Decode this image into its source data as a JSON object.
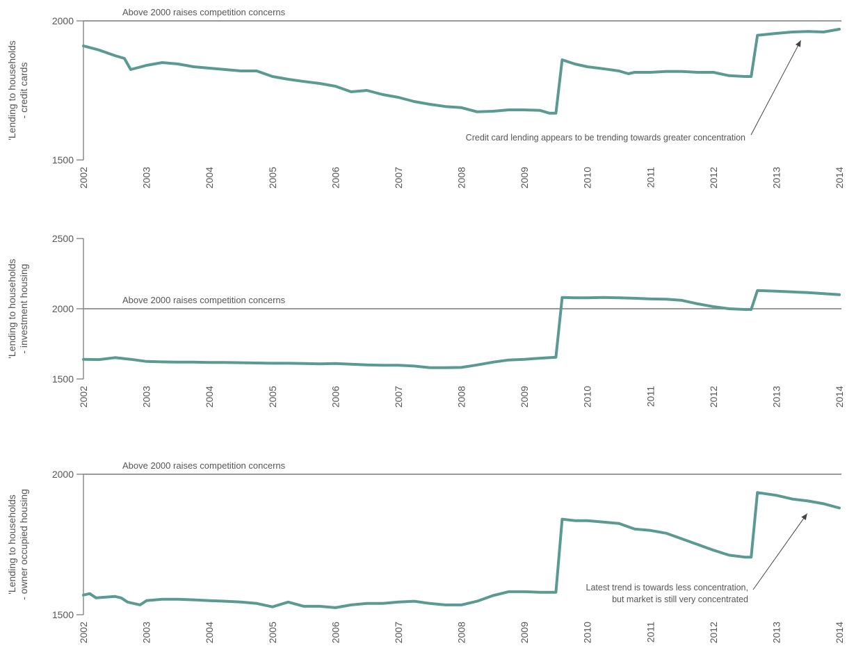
{
  "chart_data": [
    {
      "type": "line",
      "ylabel": [
        "'Lending to households",
        "- credit cards"
      ],
      "ylim": [
        1500,
        2000
      ],
      "yticks": [
        1500,
        2000
      ],
      "xticks": [
        "2002",
        "2003",
        "2004",
        "2005",
        "2006",
        "2007",
        "2008",
        "2009",
        "2010",
        "2011",
        "2012",
        "2013",
        "2014"
      ],
      "xrange": [
        2002,
        2014
      ],
      "reference": {
        "value": 2000,
        "label": "Above 2000 raises competition concerns"
      },
      "annotation": {
        "text": [
          "Credit card lending appears to be trending towards greater concentration"
        ],
        "points_to": {
          "x": 2013.4,
          "y": 1960
        }
      },
      "series": [
        {
          "color": "#5b9a91",
          "x": [
            2002.0,
            2002.25,
            2002.5,
            2002.65,
            2002.75,
            2003.0,
            2003.25,
            2003.5,
            2003.75,
            2004.0,
            2004.25,
            2004.5,
            2004.75,
            2005.0,
            2005.25,
            2005.5,
            2005.75,
            2006.0,
            2006.25,
            2006.5,
            2006.75,
            2007.0,
            2007.25,
            2007.5,
            2007.75,
            2008.0,
            2008.25,
            2008.5,
            2008.75,
            2009.0,
            2009.25,
            2009.4,
            2009.5,
            2009.6,
            2009.8,
            2010.0,
            2010.25,
            2010.5,
            2010.65,
            2010.75,
            2011.0,
            2011.25,
            2011.5,
            2011.75,
            2012.0,
            2012.25,
            2012.5,
            2012.6,
            2012.7,
            2013.0,
            2013.25,
            2013.5,
            2013.75,
            2014.0
          ],
          "y": [
            1910,
            1895,
            1875,
            1865,
            1825,
            1840,
            1850,
            1845,
            1835,
            1830,
            1825,
            1820,
            1820,
            1800,
            1790,
            1782,
            1775,
            1765,
            1745,
            1750,
            1735,
            1725,
            1710,
            1700,
            1692,
            1688,
            1673,
            1675,
            1680,
            1680,
            1678,
            1668,
            1668,
            1860,
            1845,
            1835,
            1828,
            1820,
            1810,
            1815,
            1815,
            1818,
            1818,
            1815,
            1815,
            1803,
            1800,
            1800,
            1948,
            1955,
            1960,
            1962,
            1960,
            1970
          ]
        }
      ]
    },
    {
      "type": "line",
      "ylabel": [
        "'Lending to households",
        "- investment housing"
      ],
      "ylim": [
        1500,
        2500
      ],
      "yticks": [
        1500,
        2000,
        2500
      ],
      "xticks": [
        "2002",
        "2003",
        "2004",
        "2005",
        "2006",
        "2007",
        "2008",
        "2009",
        "2010",
        "2011",
        "2012",
        "2013",
        "2014"
      ],
      "xrange": [
        2002,
        2014
      ],
      "reference": {
        "value": 2000,
        "label": "Above 2000 raises competition concerns"
      },
      "series": [
        {
          "color": "#5b9a91",
          "x": [
            2002.0,
            2002.25,
            2002.5,
            2002.75,
            2003.0,
            2003.25,
            2003.5,
            2003.75,
            2004.0,
            2004.25,
            2004.5,
            2004.75,
            2005.0,
            2005.25,
            2005.5,
            2005.75,
            2006.0,
            2006.25,
            2006.5,
            2006.75,
            2007.0,
            2007.25,
            2007.5,
            2007.75,
            2008.0,
            2008.25,
            2008.5,
            2008.75,
            2009.0,
            2009.25,
            2009.5,
            2009.6,
            2009.8,
            2010.0,
            2010.25,
            2010.5,
            2010.75,
            2011.0,
            2011.25,
            2011.5,
            2011.75,
            2012.0,
            2012.25,
            2012.5,
            2012.6,
            2012.7,
            2013.0,
            2013.25,
            2013.5,
            2013.75,
            2014.0
          ],
          "y": [
            1640,
            1638,
            1652,
            1640,
            1625,
            1622,
            1620,
            1620,
            1618,
            1618,
            1616,
            1614,
            1612,
            1612,
            1610,
            1608,
            1610,
            1605,
            1600,
            1598,
            1598,
            1592,
            1580,
            1580,
            1582,
            1600,
            1620,
            1635,
            1640,
            1648,
            1655,
            2080,
            2078,
            2078,
            2080,
            2078,
            2075,
            2070,
            2068,
            2060,
            2035,
            2015,
            2000,
            1995,
            1995,
            2130,
            2125,
            2120,
            2115,
            2108,
            2100
          ]
        }
      ]
    },
    {
      "type": "line",
      "ylabel": [
        "'Lending to households",
        "- owner occupied housing"
      ],
      "ylim": [
        1500,
        2000
      ],
      "yticks": [
        1500,
        2000
      ],
      "xticks": [
        "2002",
        "2003",
        "2004",
        "2005",
        "2006",
        "2007",
        "2008",
        "2009",
        "2010",
        "2011",
        "2012",
        "2013",
        "2014"
      ],
      "xrange": [
        2002,
        2014
      ],
      "reference": {
        "value": 2000,
        "label": "Above 2000 raises competition concerns"
      },
      "annotation": {
        "text": [
          "Latest trend is towards less concentration,",
          "but market is still very concentrated"
        ],
        "points_to": {
          "x": 2013.5,
          "y": 1890
        }
      },
      "series": [
        {
          "color": "#5b9a91",
          "x": [
            2002.0,
            2002.1,
            2002.2,
            2002.5,
            2002.6,
            2002.7,
            2002.9,
            2003.0,
            2003.25,
            2003.5,
            2003.75,
            2004.0,
            2004.25,
            2004.5,
            2004.75,
            2005.0,
            2005.25,
            2005.5,
            2005.75,
            2006.0,
            2006.25,
            2006.5,
            2006.75,
            2007.0,
            2007.25,
            2007.5,
            2007.75,
            2008.0,
            2008.25,
            2008.5,
            2008.75,
            2009.0,
            2009.25,
            2009.5,
            2009.6,
            2009.8,
            2010.0,
            2010.25,
            2010.5,
            2010.75,
            2011.0,
            2011.25,
            2011.5,
            2011.75,
            2012.0,
            2012.25,
            2012.5,
            2012.6,
            2012.7,
            2013.0,
            2013.25,
            2013.5,
            2013.75,
            2014.0
          ],
          "y": [
            1570,
            1575,
            1560,
            1565,
            1560,
            1545,
            1535,
            1550,
            1555,
            1555,
            1553,
            1550,
            1548,
            1545,
            1540,
            1528,
            1545,
            1530,
            1530,
            1525,
            1535,
            1540,
            1540,
            1545,
            1548,
            1540,
            1535,
            1535,
            1548,
            1568,
            1582,
            1582,
            1580,
            1580,
            1840,
            1835,
            1835,
            1830,
            1825,
            1805,
            1800,
            1790,
            1770,
            1750,
            1730,
            1712,
            1705,
            1705,
            1935,
            1925,
            1912,
            1905,
            1895,
            1880
          ]
        }
      ]
    }
  ]
}
